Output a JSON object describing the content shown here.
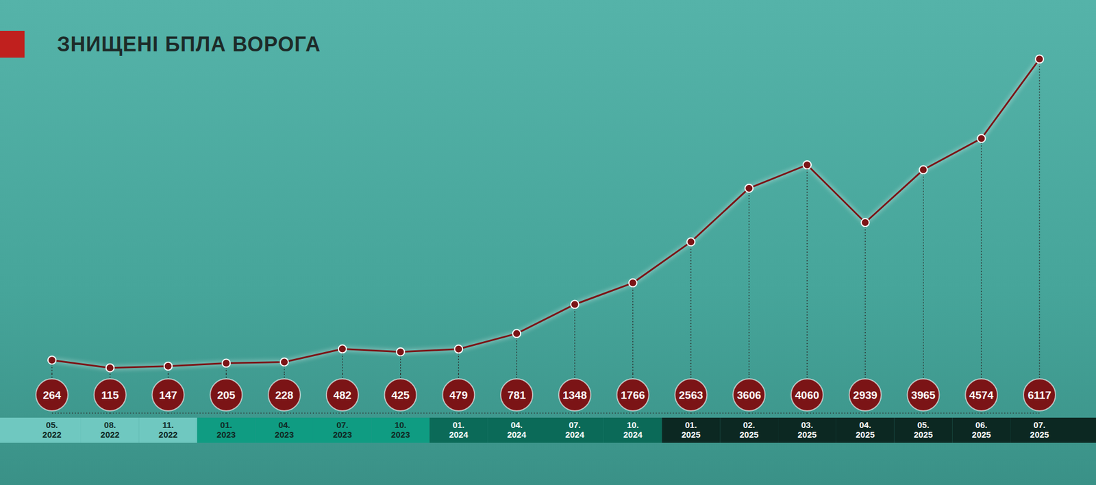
{
  "chart_data": {
    "type": "line",
    "title": "ЗНИЩЕНІ БПЛА ВОРОГА",
    "categories": [
      "05. 2022",
      "08. 2022",
      "11. 2022",
      "01. 2023",
      "04. 2023",
      "07. 2023",
      "10. 2023",
      "01. 2024",
      "04. 2024",
      "07. 2024",
      "10. 2024",
      "01. 2025",
      "02. 2025",
      "03. 2025",
      "04. 2025",
      "05. 2025",
      "06. 2025",
      "07. 2025"
    ],
    "values": [
      264,
      115,
      147,
      205,
      228,
      482,
      425,
      479,
      781,
      1348,
      1766,
      2563,
      3606,
      4060,
      2939,
      3965,
      4574,
      6117
    ],
    "color": "#7b1416",
    "ylim": [
      0,
      6500
    ],
    "grid": false,
    "data_labels": true,
    "tick_labels": "x",
    "marker": "circle"
  }
}
